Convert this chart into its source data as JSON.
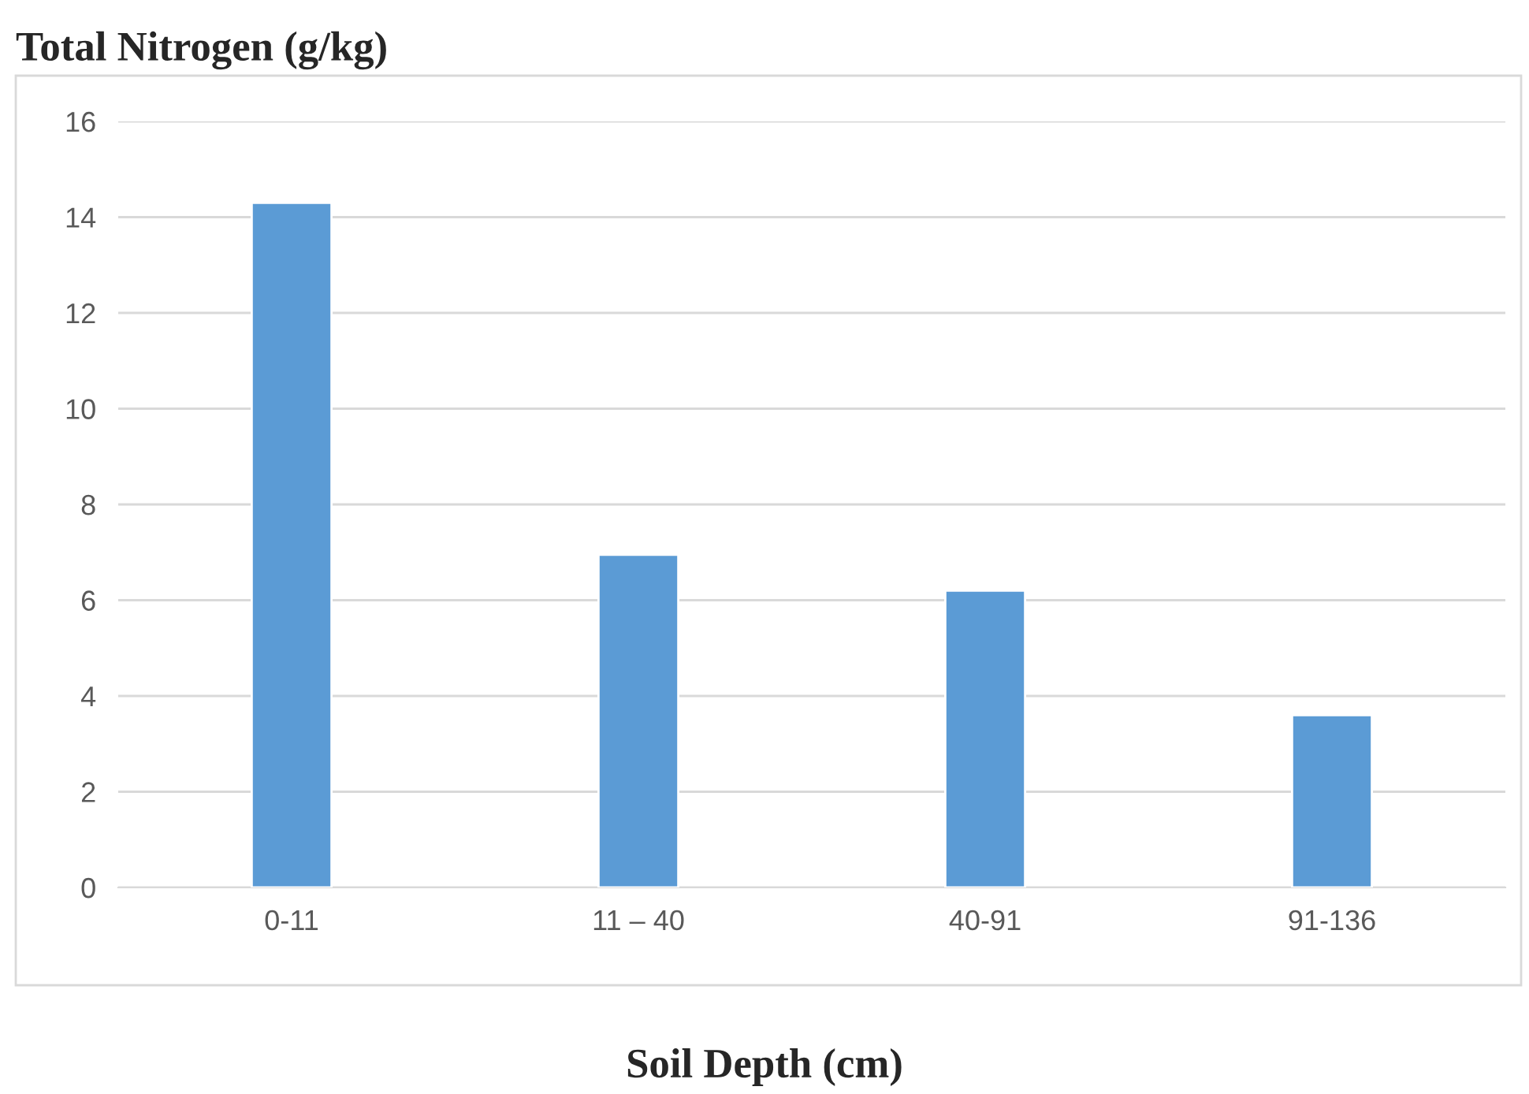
{
  "chart_data": {
    "type": "bar",
    "title": "Total Nitrogen (g/kg)",
    "xlabel": "Soil Depth (cm)",
    "categories": [
      "0-11",
      "11 – 40",
      "40-91",
      "91-136"
    ],
    "values": [
      14.3,
      6.95,
      6.2,
      3.6
    ],
    "color": "#5b9bd5",
    "ylim": [
      0,
      16
    ],
    "yticks": [
      0,
      2,
      4,
      6,
      8,
      10,
      12,
      14,
      16
    ],
    "grid": "y",
    "legend": false
  }
}
